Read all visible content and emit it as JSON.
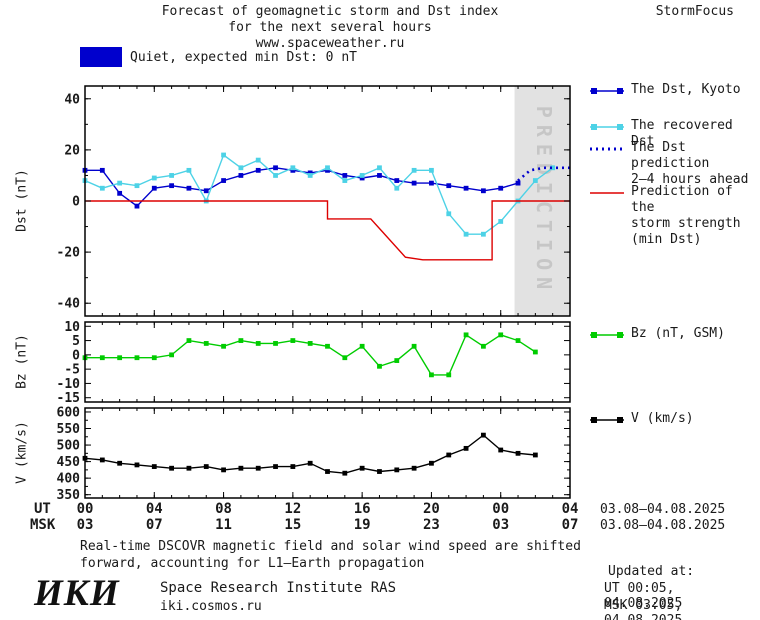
{
  "header": {
    "title_line1": "Forecast of geomagnetic storm and Dst index",
    "title_line2": "for the next several hours",
    "title_line3": "www.spaceweather.ru",
    "brand": "StormFocus"
  },
  "status": {
    "label": "Quiet, expected min Dst: 0 nT"
  },
  "colors": {
    "dst": "#0000cd",
    "recovered": "#4dd2e6",
    "prediction": "#0000cd",
    "storm": "#dd0000",
    "bz": "#00cc00",
    "v": "#000000",
    "swatch": "#0000cd",
    "band": "#e2e2e2",
    "band_text": "#c6c6c6"
  },
  "legend": {
    "dst_kyoto": "The Dst, Kyoto",
    "recovered": "The recovered Dst",
    "prediction_l1": "The Dst prediction",
    "prediction_l2": "2–4 hours ahead",
    "storm_l1": "Prediction of the",
    "storm_l2": "storm strength",
    "storm_l3": "(min Dst)",
    "bz": "Bz (nT, GSM)",
    "v": "V (km/s)"
  },
  "axis": {
    "ut_label": "UT",
    "msk_label": "MSK",
    "ut_ticks": [
      "00",
      "04",
      "08",
      "12",
      "16",
      "20",
      "00",
      "04"
    ],
    "msk_ticks": [
      "03",
      "07",
      "11",
      "15",
      "19",
      "23",
      "03",
      "07"
    ],
    "date_range": "03.08–04.08.2025"
  },
  "footer": {
    "note_line1": "Real-time DSCOVR magnetic field and solar wind speed are shifted",
    "note_line2": "forward, accounting for L1–Earth propagation",
    "logo": "ИКИ",
    "institute": "Space Research Institute RAS",
    "site": "iki.cosmos.ru",
    "updated_label": "Updated at:",
    "updated_ut": "UT  00:05, 04.08.2025",
    "updated_msk": "MSK 03:05, 04.08.2025"
  },
  "chart_data": [
    {
      "id": "dst",
      "type": "line",
      "ylabel": "Dst (nT)",
      "xlabel": "UT / MSK hours",
      "xlim": [
        0,
        28
      ],
      "xticks": [
        0,
        4,
        8,
        12,
        16,
        20,
        24,
        28
      ],
      "xminor": 1,
      "ylim": [
        -45,
        45
      ],
      "yticks": [
        40,
        20,
        0,
        -20,
        -40
      ],
      "yminor": 10,
      "prediction_band": {
        "start": 24.8,
        "end": 28,
        "label": "PREDICTION"
      },
      "series": [
        {
          "name": "The Dst, Kyoto",
          "color": "#0000cd",
          "style": "line-markers",
          "x": [
            0,
            1,
            2,
            3,
            4,
            5,
            6,
            7,
            8,
            9,
            10,
            11,
            12,
            13,
            14,
            15,
            16,
            17,
            18,
            19,
            20,
            21,
            22,
            23,
            24,
            25
          ],
          "y": [
            12,
            12,
            3,
            -2,
            5,
            6,
            5,
            4,
            8,
            10,
            12,
            13,
            12,
            11,
            12,
            10,
            9,
            10,
            8,
            7,
            7,
            6,
            5,
            4,
            5,
            7
          ]
        },
        {
          "name": "The recovered Dst",
          "color": "#4dd2e6",
          "style": "line-markers",
          "x": [
            0,
            1,
            2,
            3,
            4,
            5,
            6,
            7,
            8,
            9,
            10,
            11,
            12,
            13,
            14,
            15,
            16,
            17,
            18,
            19,
            20,
            21,
            22,
            23,
            24,
            25,
            26,
            27
          ],
          "y": [
            8,
            5,
            7,
            6,
            9,
            10,
            12,
            0,
            18,
            13,
            16,
            10,
            13,
            10,
            13,
            8,
            10,
            13,
            5,
            12,
            12,
            -5,
            -13,
            -13,
            -8,
            0,
            8,
            13
          ]
        },
        {
          "name": "The Dst prediction 2–4 hours ahead",
          "color": "#0000cd",
          "style": "dotted",
          "x": [
            25,
            25.7,
            26.5,
            28
          ],
          "y": [
            8,
            12,
            13,
            13
          ]
        },
        {
          "name": "Prediction of the storm strength (min Dst)",
          "color": "#dd0000",
          "style": "line",
          "x": [
            0,
            14,
            14,
            16.5,
            18.5,
            19.5,
            23.5,
            23.5,
            28
          ],
          "y": [
            0,
            0,
            -7,
            -7,
            -22,
            -23,
            -23,
            0,
            0
          ]
        }
      ]
    },
    {
      "id": "bz",
      "type": "line",
      "ylabel": "Bz (nT)",
      "xlabel": "UT / MSK hours",
      "xlim": [
        0,
        28
      ],
      "xticks": [
        0,
        4,
        8,
        12,
        16,
        20,
        24,
        28
      ],
      "xminor": 1,
      "ylim": [
        -16.5,
        11.5
      ],
      "yticks": [
        10,
        5,
        0,
        -5,
        -10,
        -15
      ],
      "series": [
        {
          "name": "Bz (nT, GSM)",
          "color": "#00cc00",
          "style": "line-markers",
          "x": [
            0,
            1,
            2,
            3,
            4,
            5,
            6,
            7,
            8,
            9,
            10,
            11,
            12,
            13,
            14,
            15,
            16,
            17,
            18,
            19,
            20,
            21,
            22,
            23,
            24,
            25,
            26
          ],
          "y": [
            -1,
            -1,
            -1,
            -1,
            -1,
            0,
            5,
            4,
            3,
            5,
            4,
            4,
            5,
            4,
            3,
            -1,
            3,
            -4,
            -2,
            3,
            -7,
            -7,
            7,
            3,
            7,
            5,
            1
          ]
        }
      ]
    },
    {
      "id": "v",
      "type": "line",
      "ylabel": "V (km/s)",
      "xlabel": "UT / MSK hours",
      "xlim": [
        0,
        28
      ],
      "xticks": [
        0,
        4,
        8,
        12,
        16,
        20,
        24,
        28
      ],
      "xminor": 1,
      "ylim": [
        340,
        612
      ],
      "yticks": [
        600,
        550,
        500,
        450,
        400,
        350
      ],
      "yminor": 25,
      "series": [
        {
          "name": "V (km/s)",
          "color": "#000000",
          "style": "line-markers",
          "x": [
            0,
            1,
            2,
            3,
            4,
            5,
            6,
            7,
            8,
            9,
            10,
            11,
            12,
            13,
            14,
            15,
            16,
            17,
            18,
            19,
            20,
            21,
            22,
            23,
            24,
            25,
            26
          ],
          "y": [
            460,
            455,
            445,
            440,
            435,
            430,
            430,
            435,
            425,
            430,
            430,
            435,
            435,
            445,
            420,
            415,
            430,
            420,
            425,
            430,
            445,
            470,
            490,
            530,
            485,
            475,
            470
          ]
        }
      ]
    }
  ]
}
